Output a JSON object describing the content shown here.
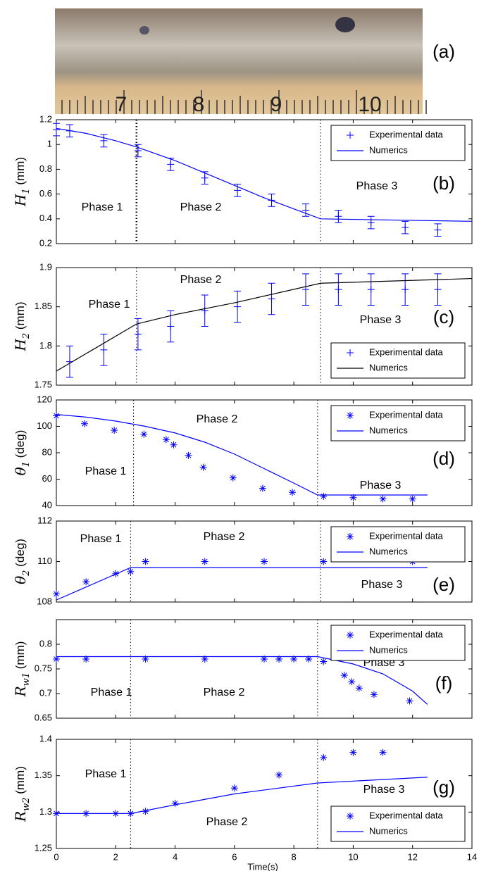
{
  "photo": {
    "label": "(a)",
    "ruler_labels": [
      "7",
      "8",
      "9",
      "10"
    ]
  },
  "chart_data": [
    {
      "type": "line",
      "label": "(b)",
      "ylabel": {
        "symbol": "H",
        "sub": "1",
        "unit": " (mm)"
      },
      "xlim": [
        0,
        14
      ],
      "ylim": [
        0.2,
        1.2
      ],
      "yticks": [
        0.2,
        0.4,
        0.6,
        0.8,
        1,
        1.2
      ],
      "phase_labels": [
        "Phase 1",
        "Phase 2",
        "Phase 3"
      ],
      "phase_boundaries": [
        2.7,
        8.9
      ],
      "legend": "upper right",
      "series": [
        {
          "name": "Experimental data",
          "color": "#0000ff",
          "marker": "+",
          "x": [
            0,
            0.45,
            1.6,
            2.75,
            3.85,
            5,
            6.1,
            7.25,
            8.4,
            9.5,
            10.6,
            11.75,
            12.85
          ],
          "values": [
            1.12,
            1.11,
            1.03,
            0.95,
            0.84,
            0.73,
            0.63,
            0.55,
            0.47,
            0.42,
            0.37,
            0.33,
            0.31
          ],
          "errors": [
            0.05,
            0.05,
            0.05,
            0.05,
            0.05,
            0.05,
            0.05,
            0.05,
            0.05,
            0.05,
            0.05,
            0.05,
            0.05
          ]
        },
        {
          "name": "Numerics",
          "color": "#0000ff",
          "x": [
            0,
            1,
            2,
            2.7,
            4,
            5,
            6,
            7,
            8,
            8.9,
            14
          ],
          "values": [
            1.13,
            1.09,
            1.03,
            0.98,
            0.87,
            0.77,
            0.67,
            0.57,
            0.48,
            0.4,
            0.38
          ]
        }
      ]
    },
    {
      "type": "line",
      "label": "(c)",
      "ylabel": {
        "symbol": "H",
        "sub": "2",
        "unit": " (mm)"
      },
      "xlim": [
        0,
        14
      ],
      "ylim": [
        1.75,
        1.9
      ],
      "yticks": [
        1.75,
        1.8,
        1.85,
        1.9
      ],
      "phase_labels": [
        "Phase 1",
        "Phase 2",
        "Phase 3"
      ],
      "phase_boundaries": [
        2.7,
        8.9
      ],
      "legend": "lower right",
      "series": [
        {
          "name": "Experimental data",
          "color": "#0000ff",
          "marker": "+",
          "x": [
            0.45,
            1.6,
            2.75,
            3.85,
            5,
            6.1,
            7.25,
            8.4,
            9.5,
            10.6,
            11.75,
            12.85
          ],
          "values": [
            1.78,
            1.795,
            1.815,
            1.825,
            1.845,
            1.85,
            1.86,
            1.872,
            1.872,
            1.872,
            1.872,
            1.872
          ],
          "errors": [
            0.02,
            0.02,
            0.02,
            0.02,
            0.02,
            0.02,
            0.02,
            0.02,
            0.02,
            0.02,
            0.02,
            0.02
          ]
        },
        {
          "name": "Numerics",
          "color": "#000000",
          "x": [
            0,
            2.7,
            4,
            6,
            8.9,
            14
          ],
          "values": [
            1.768,
            1.828,
            1.84,
            1.855,
            1.88,
            1.886
          ]
        }
      ]
    },
    {
      "type": "line",
      "label": "(d)",
      "ylabel": {
        "symbol": "θ",
        "sub": "1",
        "unit": " (deg)"
      },
      "xlim": [
        0,
        14
      ],
      "ylim": [
        40,
        120
      ],
      "yticks": [
        40,
        60,
        80,
        100,
        120
      ],
      "phase_labels": [
        "Phase 1",
        "Phase 2",
        "Phase 3"
      ],
      "phase_boundaries": [
        2.6,
        8.8
      ],
      "legend": "upper right",
      "series": [
        {
          "name": "Experimental data",
          "color": "#0000ff",
          "marker": "*",
          "x": [
            0,
            0.95,
            1.95,
            2.95,
            3.7,
            3.95,
            4.45,
            4.95,
            5.95,
            6.95,
            7.95,
            9,
            10,
            11,
            12
          ],
          "values": [
            108,
            102,
            97,
            94,
            90,
            86,
            78,
            69,
            61,
            53,
            50,
            47,
            46,
            45,
            45
          ]
        },
        {
          "name": "Numerics",
          "color": "#0000ff",
          "x": [
            0,
            1,
            2,
            3,
            4,
            5,
            6,
            7,
            8,
            8.8,
            12.5
          ],
          "values": [
            109,
            107,
            104,
            100,
            95,
            88,
            79,
            68,
            57,
            48,
            48
          ]
        }
      ]
    },
    {
      "type": "line",
      "label": "(e)",
      "ylabel": {
        "symbol": "θ",
        "sub": "2",
        "unit": " (deg)"
      },
      "xlim": [
        0,
        14
      ],
      "ylim": [
        108,
        112
      ],
      "yticks": [
        108,
        110,
        112
      ],
      "phase_labels": [
        "Phase 1",
        "Phase 2",
        "Phase 3"
      ],
      "phase_boundaries": [
        2.5,
        8.9
      ],
      "legend": "upper right",
      "series": [
        {
          "name": "Experimental data",
          "color": "#0000ff",
          "marker": "*",
          "x": [
            0,
            1,
            2,
            2.5,
            3,
            5,
            7,
            9,
            12
          ],
          "values": [
            108.4,
            109,
            109.4,
            109.5,
            110,
            110,
            110,
            110,
            110
          ]
        },
        {
          "name": "Numerics",
          "color": "#0000ff",
          "x": [
            0,
            2.5,
            12.5
          ],
          "values": [
            108.1,
            109.7,
            109.7
          ]
        }
      ]
    },
    {
      "type": "line",
      "label": "(f)",
      "ylabel": {
        "symbol": "R",
        "sub": "w1",
        "unit": " (mm)"
      },
      "xlim": [
        0,
        14
      ],
      "ylim": [
        0.65,
        0.85
      ],
      "yticks": [
        0.65,
        0.7,
        0.75,
        0.8
      ],
      "phase_labels": [
        "Phase 1",
        "Phase 2",
        "Phase 3"
      ],
      "phase_boundaries": [
        2.5,
        8.8
      ],
      "legend": "upper right",
      "series": [
        {
          "name": "Experimental data",
          "color": "#0000ff",
          "marker": "*",
          "x": [
            0,
            1,
            3,
            5,
            7,
            7.5,
            8,
            8.5,
            9,
            9.7,
            9.95,
            10.2,
            10.7,
            11.9
          ],
          "values": [
            0.77,
            0.77,
            0.77,
            0.77,
            0.77,
            0.77,
            0.77,
            0.77,
            0.765,
            0.737,
            0.724,
            0.711,
            0.698,
            0.685
          ]
        },
        {
          "name": "Numerics",
          "color": "#0000ff",
          "x": [
            0,
            8.8,
            10,
            11,
            12,
            12.5
          ],
          "values": [
            0.775,
            0.775,
            0.76,
            0.74,
            0.705,
            0.678
          ]
        }
      ]
    },
    {
      "type": "line",
      "label": "(g)",
      "ylabel": {
        "symbol": "R",
        "sub": "w2",
        "unit": " (mm)"
      },
      "xlabel": "Time(s)",
      "xlim": [
        0,
        14
      ],
      "xticks": [
        0,
        2,
        4,
        6,
        8,
        10,
        12,
        14
      ],
      "ylim": [
        1.25,
        1.4
      ],
      "yticks": [
        1.25,
        1.3,
        1.35,
        1.4
      ],
      "phase_labels": [
        "Phase 1",
        "Phase 2",
        "Phase 3"
      ],
      "phase_boundaries": [
        2.5,
        8.8
      ],
      "legend": "lower right",
      "series": [
        {
          "name": "Experimental data",
          "color": "#0000ff",
          "marker": "*",
          "x": [
            0,
            1,
            2,
            2.5,
            3,
            4,
            6,
            7.5,
            9,
            10,
            11
          ],
          "values": [
            1.298,
            1.298,
            1.298,
            1.298,
            1.301,
            1.312,
            1.333,
            1.351,
            1.375,
            1.382,
            1.382
          ]
        },
        {
          "name": "Numerics",
          "color": "#0000ff",
          "x": [
            0,
            2.5,
            4,
            6,
            8.8,
            12.5
          ],
          "values": [
            1.298,
            1.298,
            1.31,
            1.325,
            1.34,
            1.348
          ]
        }
      ]
    }
  ]
}
